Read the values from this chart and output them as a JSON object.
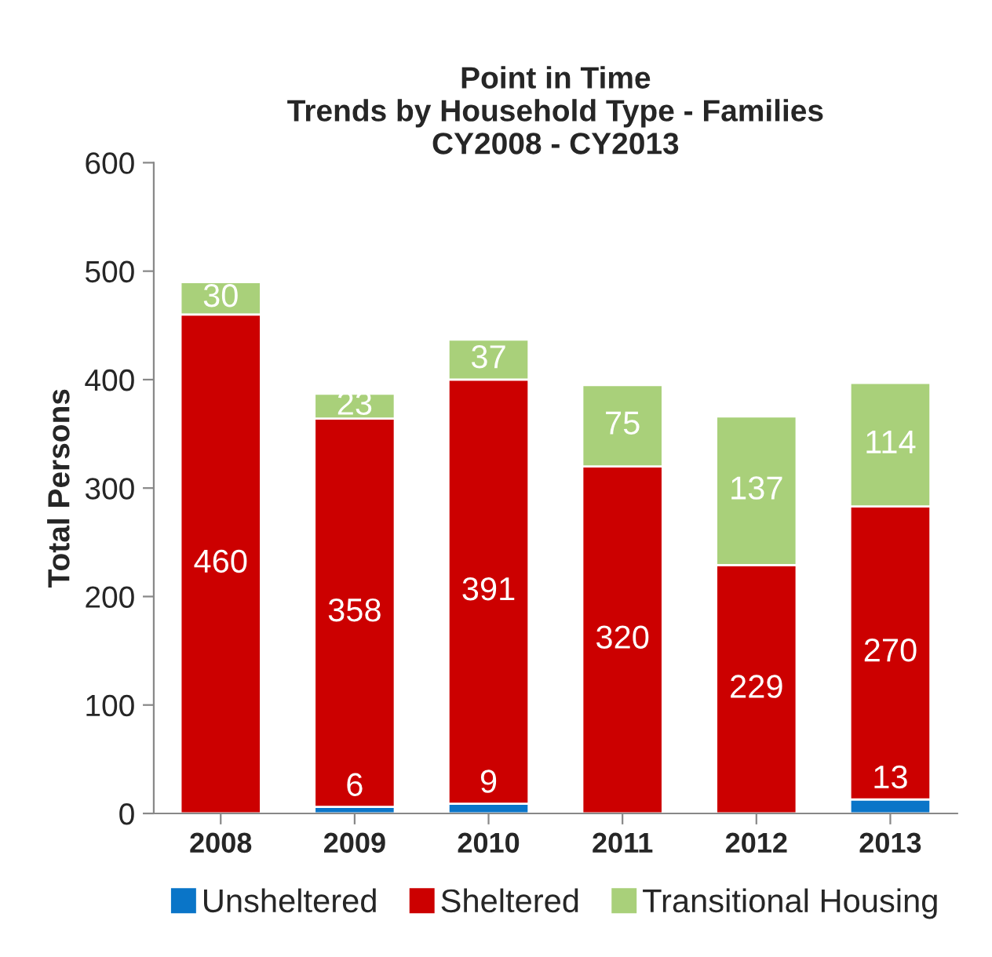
{
  "chart_data": {
    "type": "bar",
    "stacked": true,
    "title": "Point in Time\nTrends by Household Type - Families\nCY2008 - CY2013",
    "ylabel": "Total Persons",
    "categories": [
      "2008",
      "2009",
      "2010",
      "2011",
      "2012",
      "2013"
    ],
    "series": [
      {
        "name": "Unsheltered",
        "color": "#0a75c8",
        "values": [
          0,
          6,
          9,
          0,
          0,
          13
        ],
        "value_labels": [
          null,
          "6",
          "9",
          null,
          null,
          "13"
        ]
      },
      {
        "name": "Sheltered",
        "color": "#cc0000",
        "values": [
          460,
          358,
          391,
          320,
          229,
          270
        ],
        "value_labels": [
          "460",
          "358",
          "391",
          "320",
          "229",
          "270"
        ]
      },
      {
        "name": "Transitional Housing",
        "color": "#a9d07a",
        "values": [
          30,
          23,
          37,
          75,
          137,
          114
        ],
        "value_labels": [
          "30",
          "23",
          "37",
          "75",
          "137",
          "114"
        ]
      }
    ],
    "ylim": [
      0,
      600
    ],
    "yticks": [
      0,
      100,
      200,
      300,
      400,
      500,
      600
    ],
    "grid": false,
    "legend": "bottom"
  }
}
